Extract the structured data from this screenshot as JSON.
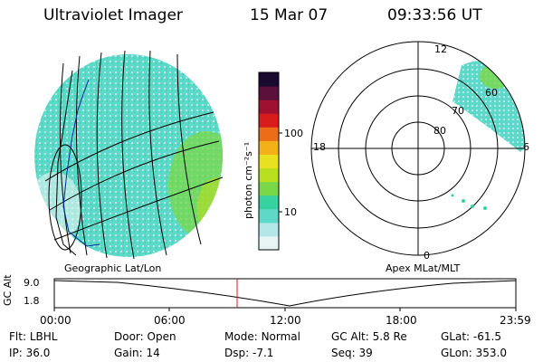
{
  "header": {
    "instrument": "Ultraviolet Imager",
    "date": "15 Mar 07",
    "time": "09:33:56 UT"
  },
  "left_panel": {
    "caption": "Geographic Lat/Lon"
  },
  "right_panel": {
    "caption": "Apex MLat/MLT",
    "mlt_labels": {
      "top": "12",
      "left": "18",
      "right": "6",
      "bottom": "0"
    },
    "lat_rings": [
      "80",
      "70",
      "60"
    ]
  },
  "colorbar": {
    "unit_label": "photon cm⁻²s⁻¹",
    "ticks": [
      "100",
      "10"
    ],
    "colors": [
      "#e8f4f4",
      "#b4e8e8",
      "#5ed8c8",
      "#36d2a0",
      "#7ad848",
      "#b8e020",
      "#e8e020",
      "#f4b018",
      "#ec6c18",
      "#d81c1c",
      "#a01030",
      "#5a103a",
      "#1a0a30"
    ]
  },
  "altitude_plot": {
    "ylabel": "GC Alt",
    "y_top": "9.0",
    "y_bottom": "1.8",
    "x_ticks": [
      "00:00",
      "06:00",
      "12:00",
      "18:00",
      "23:59"
    ],
    "marker_color": "#d02020"
  },
  "status": {
    "row1": [
      {
        "label": "Flt:",
        "value": "LBHL"
      },
      {
        "label": "Door:",
        "value": "Open"
      },
      {
        "label": "Mode:",
        "value": "Normal"
      },
      {
        "label": "GC Alt:",
        "value": "5.8 Re"
      },
      {
        "label": "GLat:",
        "value": "-61.5"
      }
    ],
    "row2": [
      {
        "label": "IP:",
        "value": "36.0"
      },
      {
        "label": "Gain:",
        "value": "14"
      },
      {
        "label": "Dsp:",
        "value": "-7.1"
      },
      {
        "label": "Seq:",
        "value": "39"
      },
      {
        "label": "GLon:",
        "value": "353.0"
      }
    ]
  }
}
